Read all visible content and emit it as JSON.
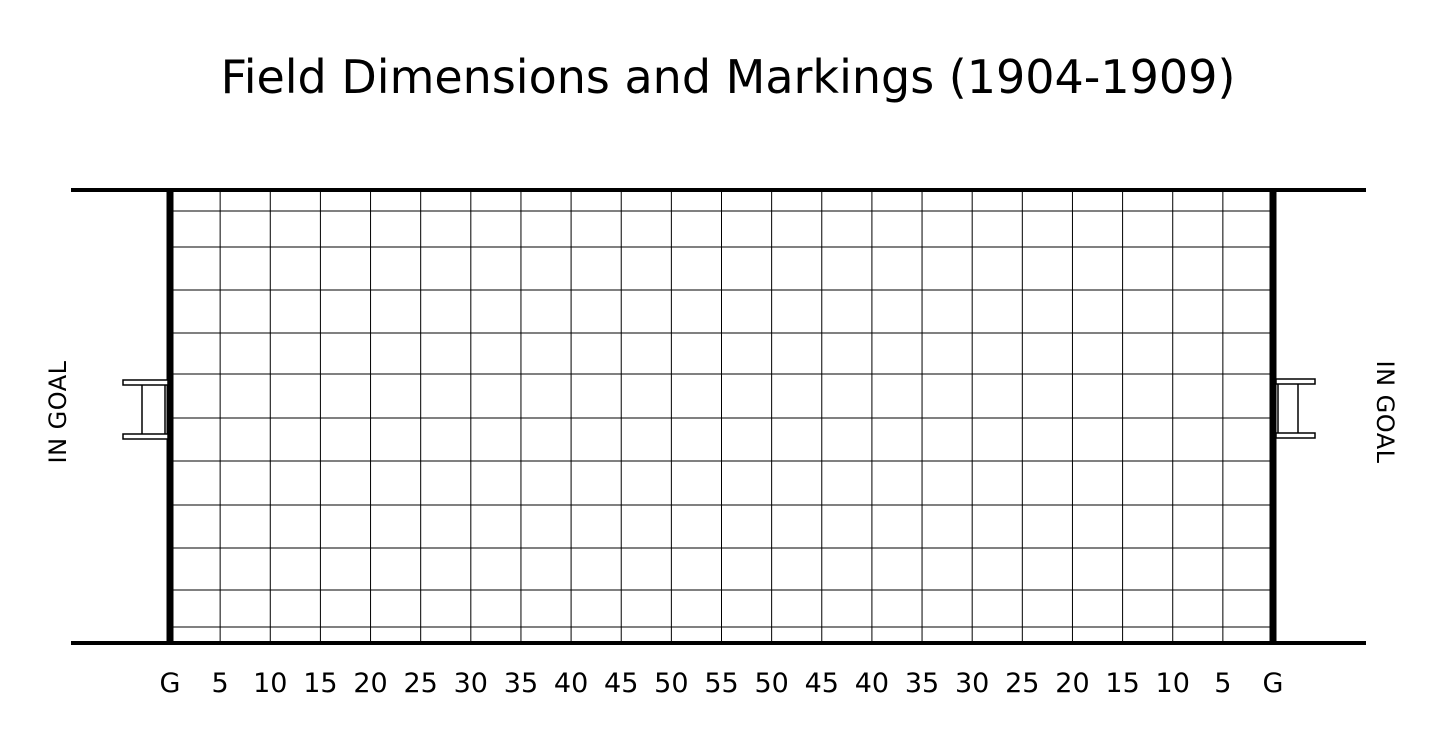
{
  "title": "Field Dimensions and Markings (1904-1909)",
  "in_goal_left": "IN GOAL",
  "in_goal_right": "IN GOAL",
  "yard_labels": [
    "G",
    "5",
    "10",
    "15",
    "20",
    "25",
    "30",
    "35",
    "40",
    "45",
    "50",
    "55",
    "50",
    "45",
    "40",
    "35",
    "30",
    "25",
    "20",
    "15",
    "10",
    "5",
    "G"
  ],
  "colors": {
    "line": "#000000",
    "background": "#ffffff"
  }
}
